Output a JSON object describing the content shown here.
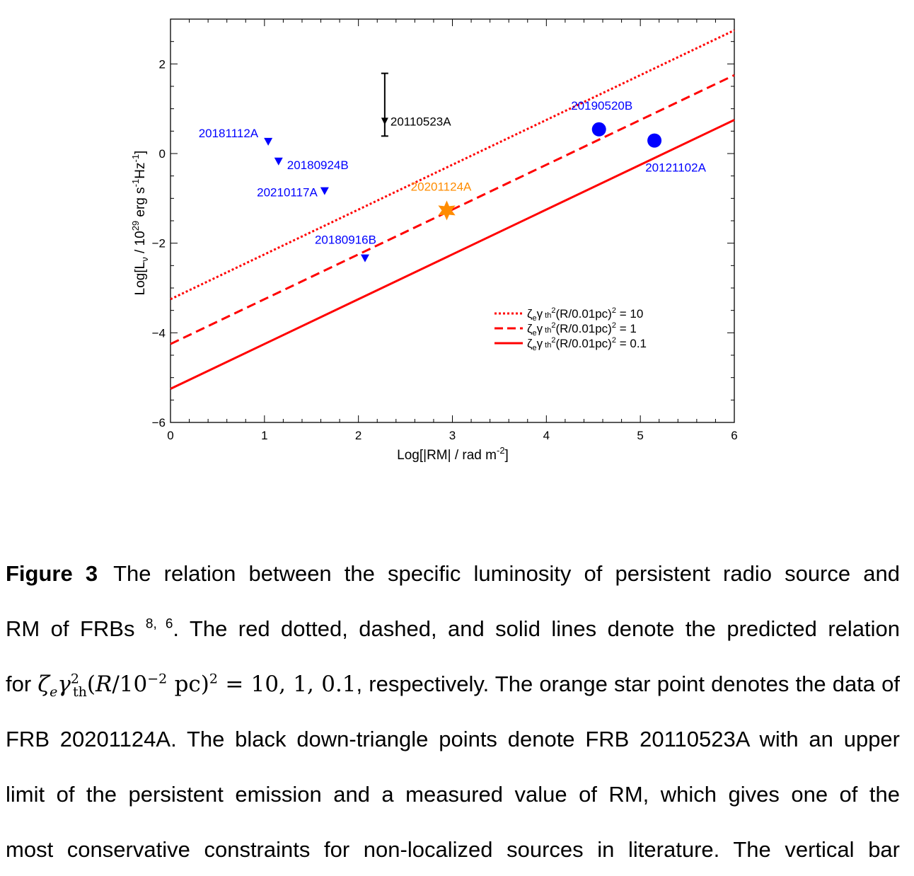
{
  "chart_data": {
    "type": "scatter",
    "xlabel_parts": [
      "Log[|RM| / rad m",
      "-2",
      "]"
    ],
    "ylabel_parts": [
      "Log[L",
      "ν",
      " / 10",
      "29",
      " erg s",
      "-1",
      "Hz",
      "-1",
      "]"
    ],
    "xlim": [
      0,
      6
    ],
    "ylim": [
      -6,
      3
    ],
    "xticks": [
      0,
      1,
      2,
      3,
      4,
      5,
      6
    ],
    "xtick_labels": [
      "0",
      "1",
      "2",
      "3",
      "4",
      "5",
      "6"
    ],
    "yticks": [
      -6,
      -4,
      -2,
      0,
      2
    ],
    "ytick_labels": [
      "−6",
      "−4",
      "−2",
      "0",
      "2"
    ],
    "lines": [
      {
        "style": "dotted",
        "color": "#ff0000",
        "x": [
          0,
          6
        ],
        "y": [
          -3.25,
          2.75
        ],
        "legend": [
          "ζ",
          "e",
          "γ",
          " th",
          "2",
          "(R/0.01pc)",
          "2",
          " = 10"
        ]
      },
      {
        "style": "dashed",
        "color": "#ff0000",
        "x": [
          0,
          6
        ],
        "y": [
          -4.25,
          1.75
        ],
        "legend": [
          "ζ",
          "e",
          "γ",
          " th",
          "2",
          "(R/0.01pc)",
          "2",
          " = 1"
        ]
      },
      {
        "style": "solid",
        "color": "#ff0000",
        "x": [
          0,
          6
        ],
        "y": [
          -5.25,
          0.75
        ],
        "legend": [
          "ζ",
          "e",
          "γ",
          " th",
          "2",
          "(R/0.01pc)",
          "2",
          " = 0.1"
        ]
      }
    ],
    "legend_location": "lower right",
    "points": [
      {
        "label": "20181112A",
        "x": 1.04,
        "y": 0.27,
        "marker": "down-triangle",
        "color": "#0000ff"
      },
      {
        "label": "20180924B",
        "x": 1.15,
        "y": -0.17,
        "marker": "down-triangle",
        "color": "#0000ff"
      },
      {
        "label": "20210117A",
        "x": 1.64,
        "y": -0.83,
        "marker": "down-triangle",
        "color": "#0000ff"
      },
      {
        "label": "20180916B",
        "x": 2.07,
        "y": -2.33,
        "marker": "down-triangle",
        "color": "#0000ff"
      },
      {
        "label": "20201124A",
        "x": 2.94,
        "y": -1.27,
        "marker": "star",
        "color": "#ff8c00"
      },
      {
        "label": "20190520B",
        "x": 4.56,
        "y": 0.54,
        "marker": "circle",
        "color": "#0000ff"
      },
      {
        "label": "20121102A",
        "x": 5.15,
        "y": 0.29,
        "marker": "circle",
        "color": "#0000ff"
      },
      {
        "label": "20110523A",
        "x": 2.28,
        "y": 0.72,
        "yerr_low": 0.33,
        "yerr_high": 1.07,
        "marker": "down-triangle",
        "color": "#000000"
      }
    ]
  },
  "caption": {
    "figure_label": "Figure 3",
    "line1": "The relation between the specific luminosity of persistent radio source and",
    "line2_a": "RM of FRBs ",
    "line2_refs": "8, 6",
    "line2_b": ". The red dotted, dashed, and solid lines denote the predicted relation",
    "line3_a": "for ",
    "line3_b": ", respectively. The orange star point denotes the data of",
    "line4": "FRB 20201124A. The black down-triangle points denote FRB 20110523A with an upper",
    "line5": "limit of the persistent emission and a measured value of RM, which gives one of the",
    "line6": "most conservative constraints for non-localized sources in literature.  The vertical bar"
  }
}
